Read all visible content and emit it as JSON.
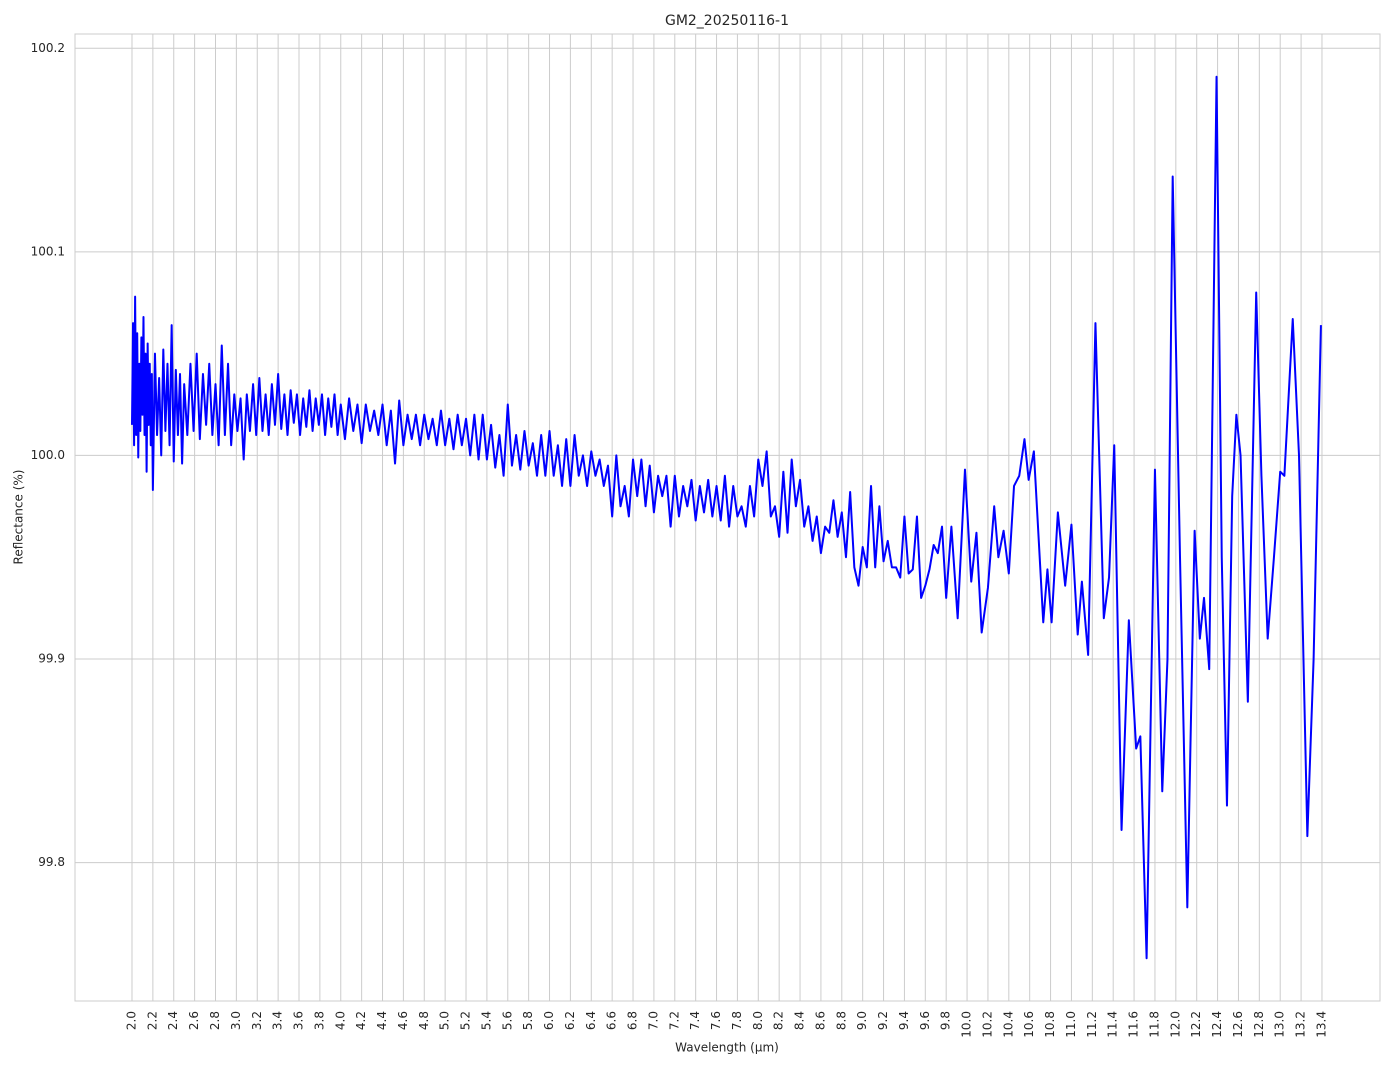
{
  "chart_data": {
    "type": "line",
    "title": "GM2_20250116-1",
    "x_label": "Wavelength (µm)",
    "y_label": "Reflectance (%)",
    "grid": true,
    "xlim": [
      1.454,
      13.956
    ],
    "ylim": [
      99.732,
      100.207
    ],
    "yticks": [
      99.8,
      99.9,
      {
        "value": 100.0,
        "label": "100.0"
      },
      100.1,
      100.2
    ],
    "xticks": [
      {
        "value": 2,
        "label": "2.0"
      },
      2.2,
      2.4,
      2.6,
      2.8,
      {
        "value": 3,
        "label": "3.0"
      },
      3.2,
      3.4,
      3.6,
      3.8,
      {
        "value": 4,
        "label": "4.0"
      },
      4.2,
      4.4,
      4.6,
      4.8,
      {
        "value": 5,
        "label": "5.0"
      },
      5.2,
      5.4,
      5.6,
      5.8,
      {
        "value": 6,
        "label": "6.0"
      },
      6.2,
      6.4,
      6.6,
      6.8,
      {
        "value": 7,
        "label": "7.0"
      },
      7.2,
      7.4,
      7.6,
      7.8,
      {
        "value": 8,
        "label": "8.0"
      },
      8.2,
      8.4,
      8.6,
      8.8,
      {
        "value": 9,
        "label": "9.0"
      },
      9.2,
      9.4,
      9.6,
      9.8,
      {
        "value": 10,
        "label": "10.0"
      },
      10.2,
      10.4,
      10.6,
      10.8,
      {
        "value": 11,
        "label": "11.0"
      },
      11.2,
      11.4,
      11.6,
      11.8,
      {
        "value": 12,
        "label": "12.0"
      },
      12.2,
      12.4,
      12.6,
      12.8,
      {
        "value": 13,
        "label": "13.0"
      },
      13.2,
      13.4
    ],
    "x": [
      2.0,
      2.01,
      2.02,
      2.03,
      2.04,
      2.05,
      2.06,
      2.07,
      2.08,
      2.09,
      2.1,
      2.11,
      2.12,
      2.13,
      2.14,
      2.15,
      2.16,
      2.17,
      2.18,
      2.19,
      2.2,
      2.22,
      2.24,
      2.26,
      2.28,
      2.3,
      2.32,
      2.34,
      2.36,
      2.38,
      2.4,
      2.42,
      2.44,
      2.46,
      2.48,
      2.5,
      2.53,
      2.56,
      2.59,
      2.62,
      2.65,
      2.68,
      2.71,
      2.74,
      2.77,
      2.8,
      2.83,
      2.86,
      2.89,
      2.92,
      2.95,
      2.98,
      3.01,
      3.04,
      3.07,
      3.1,
      3.13,
      3.16,
      3.19,
      3.22,
      3.25,
      3.28,
      3.31,
      3.34,
      3.37,
      3.4,
      3.43,
      3.46,
      3.49,
      3.52,
      3.55,
      3.58,
      3.61,
      3.64,
      3.67,
      3.7,
      3.73,
      3.76,
      3.79,
      3.82,
      3.85,
      3.88,
      3.91,
      3.94,
      3.97,
      4.0,
      4.04,
      4.08,
      4.12,
      4.16,
      4.2,
      4.24,
      4.28,
      4.32,
      4.36,
      4.4,
      4.44,
      4.48,
      4.52,
      4.56,
      4.6,
      4.64,
      4.68,
      4.72,
      4.76,
      4.8,
      4.84,
      4.88,
      4.92,
      4.96,
      5.0,
      5.04,
      5.08,
      5.12,
      5.16,
      5.2,
      5.24,
      5.28,
      5.32,
      5.36,
      5.4,
      5.44,
      5.48,
      5.52,
      5.56,
      5.6,
      5.64,
      5.68,
      5.72,
      5.76,
      5.8,
      5.84,
      5.88,
      5.92,
      5.96,
      6.0,
      6.04,
      6.08,
      6.12,
      6.16,
      6.2,
      6.24,
      6.28,
      6.32,
      6.36,
      6.4,
      6.44,
      6.48,
      6.52,
      6.56,
      6.6,
      6.64,
      6.68,
      6.72,
      6.76,
      6.8,
      6.84,
      6.88,
      6.92,
      6.96,
      7.0,
      7.04,
      7.08,
      7.12,
      7.16,
      7.2,
      7.24,
      7.28,
      7.32,
      7.36,
      7.4,
      7.44,
      7.48,
      7.52,
      7.56,
      7.6,
      7.64,
      7.68,
      7.72,
      7.76,
      7.8,
      7.84,
      7.88,
      7.92,
      7.96,
      8.0,
      8.04,
      8.08,
      8.12,
      8.16,
      8.2,
      8.24,
      8.28,
      8.32,
      8.36,
      8.4,
      8.44,
      8.48,
      8.52,
      8.56,
      8.6,
      8.64,
      8.68,
      8.72,
      8.76,
      8.8,
      8.84,
      8.88,
      8.92,
      8.96,
      9.0,
      9.04,
      9.08,
      9.12,
      9.16,
      9.2,
      9.24,
      9.28,
      9.32,
      9.36,
      9.4,
      9.44,
      9.48,
      9.52,
      9.56,
      9.6,
      9.64,
      9.68,
      9.72,
      9.76,
      9.8,
      9.85,
      9.91,
      9.98,
      10.04,
      10.09,
      10.14,
      10.2,
      10.26,
      10.3,
      10.35,
      10.4,
      10.45,
      10.5,
      10.55,
      10.59,
      10.64,
      10.73,
      10.77,
      10.81,
      10.87,
      10.94,
      11.0,
      11.06,
      11.1,
      11.16,
      11.23,
      11.31,
      11.36,
      11.41,
      11.48,
      11.55,
      11.62,
      11.66,
      11.72,
      11.8,
      11.87,
      11.92,
      11.97,
      12.04,
      12.11,
      12.18,
      12.23,
      12.27,
      12.32,
      12.39,
      12.44,
      12.49,
      12.54,
      12.58,
      12.62,
      12.69,
      12.77,
      12.82,
      12.88,
      12.94,
      13.0,
      13.04,
      13.12,
      13.18,
      13.26,
      13.32,
      13.39
    ],
    "series": [
      {
        "name": "Reflectance",
        "color": "#0000ff",
        "values": [
          100.015,
          100.065,
          100.005,
          100.078,
          100.01,
          100.06,
          99.999,
          100.045,
          100.012,
          100.058,
          100.02,
          100.068,
          100.01,
          100.05,
          99.992,
          100.055,
          100.015,
          100.045,
          100.005,
          100.04,
          99.983,
          100.05,
          100.01,
          100.038,
          100.0,
          100.052,
          100.012,
          100.045,
          100.005,
          100.064,
          99.997,
          100.042,
          100.01,
          100.04,
          99.996,
          100.035,
          100.01,
          100.045,
          100.012,
          100.05,
          100.008,
          100.04,
          100.015,
          100.045,
          100.01,
          100.035,
          100.005,
          100.054,
          100.01,
          100.045,
          100.005,
          100.03,
          100.012,
          100.028,
          99.998,
          100.03,
          100.012,
          100.035,
          100.01,
          100.038,
          100.012,
          100.03,
          100.01,
          100.035,
          100.015,
          100.04,
          100.013,
          100.03,
          100.01,
          100.032,
          100.016,
          100.03,
          100.01,
          100.028,
          100.014,
          100.032,
          100.012,
          100.028,
          100.015,
          100.03,
          100.01,
          100.028,
          100.014,
          100.03,
          100.01,
          100.025,
          100.008,
          100.028,
          100.012,
          100.025,
          100.006,
          100.025,
          100.012,
          100.022,
          100.01,
          100.025,
          100.005,
          100.022,
          99.996,
          100.027,
          100.005,
          100.02,
          100.008,
          100.02,
          100.005,
          100.02,
          100.008,
          100.018,
          100.005,
          100.022,
          100.005,
          100.018,
          100.003,
          100.02,
          100.005,
          100.018,
          100.0,
          100.02,
          99.998,
          100.02,
          99.998,
          100.015,
          99.994,
          100.01,
          99.99,
          100.025,
          99.995,
          100.01,
          99.993,
          100.012,
          99.995,
          100.006,
          99.99,
          100.01,
          99.99,
          100.012,
          99.99,
          100.005,
          99.985,
          100.008,
          99.985,
          100.01,
          99.99,
          100.0,
          99.985,
          100.002,
          99.99,
          99.998,
          99.985,
          99.995,
          99.97,
          100.0,
          99.975,
          99.985,
          99.97,
          99.998,
          99.98,
          99.998,
          99.975,
          99.995,
          99.972,
          99.99,
          99.98,
          99.99,
          99.965,
          99.99,
          99.97,
          99.985,
          99.975,
          99.988,
          99.968,
          99.985,
          99.972,
          99.988,
          99.97,
          99.985,
          99.968,
          99.99,
          99.965,
          99.985,
          99.97,
          99.975,
          99.965,
          99.985,
          99.97,
          99.998,
          99.985,
          100.002,
          99.97,
          99.975,
          99.96,
          99.992,
          99.962,
          99.998,
          99.975,
          99.988,
          99.965,
          99.975,
          99.958,
          99.97,
          99.952,
          99.965,
          99.962,
          99.978,
          99.96,
          99.972,
          99.95,
          99.982,
          99.945,
          99.936,
          99.955,
          99.945,
          99.985,
          99.945,
          99.975,
          99.948,
          99.958,
          99.945,
          99.945,
          99.94,
          99.97,
          99.942,
          99.944,
          99.97,
          99.93,
          99.936,
          99.944,
          99.956,
          99.952,
          99.965,
          99.93,
          99.965,
          99.92,
          99.993,
          99.938,
          99.962,
          99.913,
          99.935,
          99.975,
          99.95,
          99.963,
          99.942,
          99.985,
          99.99,
          100.008,
          99.988,
          100.002,
          99.918,
          99.944,
          99.918,
          99.972,
          99.936,
          99.966,
          99.912,
          99.938,
          99.902,
          100.065,
          99.92,
          99.94,
          100.005,
          99.816,
          99.919,
          99.856,
          99.862,
          99.753,
          99.993,
          99.835,
          99.9,
          100.137,
          99.95,
          99.778,
          99.963,
          99.91,
          99.93,
          99.895,
          100.186,
          99.95,
          99.828,
          99.98,
          100.02,
          100.0,
          99.879,
          100.08,
          99.99,
          99.91,
          99.95,
          99.992,
          99.99,
          100.067,
          100.0,
          99.813,
          99.9,
          100.064
        ]
      }
    ]
  }
}
